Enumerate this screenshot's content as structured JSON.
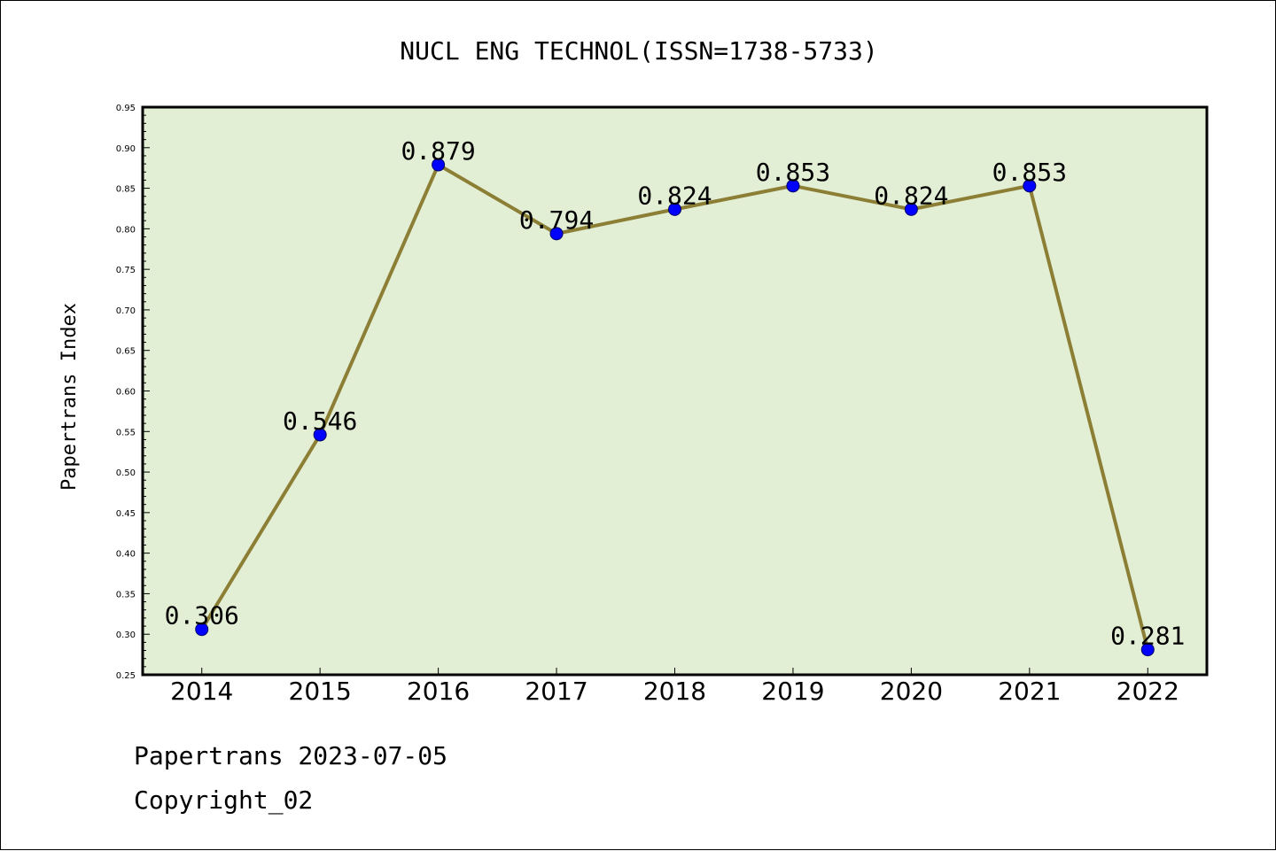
{
  "chart_data": {
    "type": "line",
    "title": "NUCL ENG TECHNOL(ISSN=1738-5733)",
    "xlabel": "",
    "ylabel": "Papertrans Index",
    "categories": [
      "2014",
      "2015",
      "2016",
      "2017",
      "2018",
      "2019",
      "2020",
      "2021",
      "2022"
    ],
    "series": [
      {
        "values": [
          0.306,
          0.546,
          0.879,
          0.794,
          0.824,
          0.853,
          0.824,
          0.853,
          0.281
        ],
        "labels": [
          "0.306",
          "0.546",
          "0.879",
          "0.794",
          "0.824",
          "0.853",
          "0.824",
          "0.853",
          "0.281"
        ]
      }
    ],
    "ylim": [
      0.25,
      0.95
    ],
    "yticks": [
      "0.25",
      "0.30",
      "0.35",
      "0.40",
      "0.45",
      "0.50",
      "0.55",
      "0.60",
      "0.65",
      "0.70",
      "0.75",
      "0.80",
      "0.85",
      "0.90",
      "0.95"
    ],
    "grid": false,
    "colors": {
      "plot_background": "#e2efd5",
      "line": "#8c7f35",
      "marker": "#0000ff",
      "marker_edge": "#000066"
    }
  },
  "footer": {
    "line1": "Papertrans 2023-07-05",
    "line2": "Copyright_02"
  }
}
